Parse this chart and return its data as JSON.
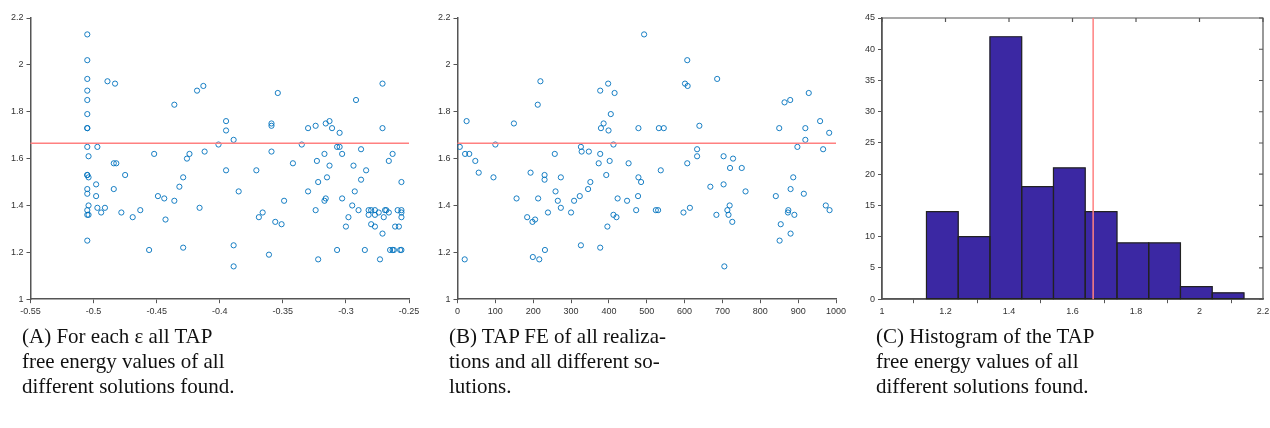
{
  "chart_data": [
    {
      "type": "scatter",
      "marker": "circle",
      "color": "#0072bd",
      "xlim": [
        -0.55,
        -0.25
      ],
      "xticks": [
        -0.55,
        -0.5,
        -0.45,
        -0.4,
        -0.35,
        -0.3,
        -0.25
      ],
      "ylim": [
        1,
        2.2
      ],
      "yticks": [
        1,
        1.2,
        1.4,
        1.6,
        1.8,
        2,
        2.2
      ],
      "x": [
        -0.505,
        -0.505,
        -0.505,
        -0.505,
        -0.505,
        -0.505,
        -0.505,
        -0.505,
        -0.505,
        -0.504,
        -0.505,
        -0.505,
        -0.504,
        -0.505,
        -0.505,
        -0.504,
        -0.505,
        -0.505,
        -0.504,
        -0.505,
        -0.489,
        -0.483,
        -0.497,
        -0.484,
        -0.482,
        -0.475,
        -0.498,
        -0.498,
        -0.484,
        -0.497,
        -0.494,
        -0.491,
        -0.478,
        -0.469,
        -0.463,
        -0.456,
        -0.452,
        -0.449,
        -0.444,
        -0.443,
        -0.436,
        -0.436,
        -0.432,
        -0.429,
        -0.429,
        -0.426,
        -0.424,
        -0.418,
        -0.413,
        -0.412,
        -0.416,
        -0.401,
        -0.395,
        -0.395,
        -0.395,
        -0.389,
        -0.389,
        -0.389,
        -0.385,
        -0.371,
        -0.369,
        -0.366,
        -0.361,
        -0.359,
        -0.359,
        -0.359,
        -0.356,
        -0.354,
        -0.351,
        -0.349,
        -0.342,
        -0.335,
        -0.33,
        -0.33,
        -0.324,
        -0.323,
        -0.324,
        -0.322,
        -0.322,
        -0.317,
        -0.317,
        -0.316,
        -0.316,
        -0.313,
        -0.315,
        -0.313,
        -0.311,
        -0.307,
        -0.307,
        -0.305,
        -0.305,
        -0.303,
        -0.303,
        -0.3,
        -0.298,
        -0.295,
        -0.294,
        -0.293,
        -0.292,
        -0.29,
        -0.288,
        -0.288,
        -0.285,
        -0.284,
        -0.282,
        -0.282,
        -0.28,
        -0.28,
        -0.277,
        -0.277,
        -0.277,
        -0.274,
        -0.273,
        -0.271,
        -0.271,
        -0.271,
        -0.27,
        -0.269,
        -0.268,
        -0.266,
        -0.266,
        -0.265,
        -0.263,
        -0.263,
        -0.262,
        -0.261,
        -0.259,
        -0.258,
        -0.257,
        -0.256,
        -0.256,
        -0.256,
        -0.256,
        -0.256
      ],
      "values": [
        2.13,
        2.02,
        1.94,
        1.89,
        1.85,
        1.79,
        1.73,
        1.73,
        1.65,
        1.61,
        1.53,
        1.53,
        1.52,
        1.47,
        1.45,
        1.4,
        1.38,
        1.36,
        1.36,
        1.25,
        1.93,
        1.92,
        1.65,
        1.58,
        1.58,
        1.53,
        1.49,
        1.44,
        1.47,
        1.39,
        1.37,
        1.39,
        1.37,
        1.35,
        1.38,
        1.21,
        1.62,
        1.44,
        1.43,
        1.34,
        1.42,
        1.83,
        1.48,
        1.52,
        1.22,
        1.6,
        1.62,
        1.89,
        1.91,
        1.63,
        1.39,
        1.66,
        1.76,
        1.72,
        1.55,
        1.68,
        1.23,
        1.14,
        1.46,
        1.55,
        1.35,
        1.37,
        1.19,
        1.75,
        1.74,
        1.63,
        1.33,
        1.88,
        1.32,
        1.42,
        1.58,
        1.66,
        1.46,
        1.73,
        1.74,
        1.59,
        1.38,
        1.5,
        1.17,
        1.42,
        1.62,
        1.43,
        1.75,
        1.76,
        1.52,
        1.57,
        1.73,
        1.65,
        1.21,
        1.71,
        1.65,
        1.62,
        1.43,
        1.31,
        1.35,
        1.4,
        1.57,
        1.46,
        1.85,
        1.38,
        1.64,
        1.51,
        1.21,
        1.55,
        1.38,
        1.36,
        1.38,
        1.32,
        1.36,
        1.38,
        1.31,
        1.37,
        1.17,
        1.92,
        1.28,
        1.73,
        1.35,
        1.38,
        1.38,
        1.37,
        1.59,
        1.21,
        1.62,
        1.21,
        1.21,
        1.31,
        1.38,
        1.31,
        1.21,
        1.21,
        1.5,
        1.38,
        1.35,
        1.37
      ],
      "ref_lines": [
        {
          "axis": "y",
          "value": 1.665,
          "color": "#ff8080"
        }
      ],
      "annotations": [
        "(A) For each ε all TAP\nfree energy values of all\ndifferent solutions found."
      ]
    },
    {
      "type": "scatter",
      "marker": "circle",
      "color": "#0072bd",
      "xlim": [
        0,
        1000
      ],
      "xticks": [
        0,
        100,
        200,
        300,
        400,
        500,
        600,
        700,
        800,
        900,
        1000
      ],
      "ylim": [
        1,
        2.2
      ],
      "yticks": [
        1,
        1.2,
        1.4,
        1.6,
        1.8,
        2,
        2.2
      ],
      "x": [
        6,
        24,
        20,
        31,
        47,
        56,
        19,
        95,
        100,
        149,
        156,
        184,
        193,
        198,
        205,
        199,
        212,
        213,
        216,
        219,
        230,
        230,
        231,
        239,
        257,
        259,
        265,
        273,
        273,
        300,
        308,
        323,
        326,
        328,
        326,
        345,
        347,
        351,
        373,
        377,
        379,
        377,
        377,
        386,
        393,
        396,
        398,
        399,
        402,
        405,
        412,
        412,
        415,
        420,
        423,
        448,
        452,
        472,
        477,
        478,
        478,
        485,
        493,
        524,
        530,
        532,
        537,
        545,
        597,
        601,
        607,
        607,
        608,
        614,
        633,
        633,
        639,
        668,
        684,
        686,
        703,
        703,
        705,
        713,
        716,
        719,
        720,
        726,
        728,
        751,
        761,
        841,
        850,
        851,
        854,
        864,
        873,
        874,
        879,
        880,
        880,
        887,
        890,
        898,
        915,
        919,
        919,
        928,
        958,
        966,
        973,
        982,
        983
      ],
      "values": [
        1.65,
        1.76,
        1.62,
        1.62,
        1.59,
        1.54,
        1.17,
        1.52,
        1.66,
        1.75,
        1.43,
        1.35,
        1.54,
        1.33,
        1.34,
        1.18,
        1.83,
        1.43,
        1.17,
        1.93,
        1.53,
        1.51,
        1.21,
        1.37,
        1.62,
        1.46,
        1.42,
        1.52,
        1.39,
        1.37,
        1.42,
        1.44,
        1.65,
        1.63,
        1.23,
        1.47,
        1.63,
        1.5,
        1.58,
        1.89,
        1.73,
        1.62,
        1.22,
        1.75,
        1.53,
        1.31,
        1.92,
        1.72,
        1.59,
        1.79,
        1.66,
        1.36,
        1.88,
        1.35,
        1.43,
        1.42,
        1.58,
        1.38,
        1.44,
        1.73,
        1.52,
        1.5,
        2.13,
        1.38,
        1.38,
        1.73,
        1.55,
        1.73,
        1.37,
        1.92,
        2.02,
        1.58,
        1.91,
        1.39,
        1.64,
        1.61,
        1.74,
        1.48,
        1.36,
        1.94,
        1.61,
        1.49,
        1.14,
        1.38,
        1.36,
        1.4,
        1.56,
        1.33,
        1.6,
        1.56,
        1.46,
        1.44,
        1.73,
        1.25,
        1.32,
        1.84,
        1.37,
        1.38,
        1.85,
        1.47,
        1.28,
        1.52,
        1.36,
        1.65,
        1.45,
        1.73,
        1.68,
        1.88,
        1.76,
        1.64,
        1.4,
        1.71,
        1.38
      ],
      "ref_lines": [
        {
          "axis": "y",
          "value": 1.665,
          "color": "#ff8080"
        }
      ],
      "annotations": [
        "(B) TAP FE of all realiza-\ntions and all different so-\nlutions."
      ]
    },
    {
      "type": "histogram",
      "color": "#3b28a3",
      "bins": [
        1.14,
        1.24,
        1.34,
        1.44,
        1.54,
        1.64,
        1.74,
        1.84,
        1.94,
        2.04,
        2.14
      ],
      "values": [
        14,
        10,
        42,
        18,
        21,
        14,
        9,
        9,
        2,
        1
      ],
      "xlim": [
        1,
        2.2
      ],
      "xticks": [
        1,
        1.2,
        1.4,
        1.6,
        1.8,
        2,
        2.2
      ],
      "ylim": [
        0,
        45
      ],
      "yticks": [
        0,
        5,
        10,
        15,
        20,
        25,
        30,
        35,
        40,
        45
      ],
      "ref_lines": [
        {
          "axis": "x",
          "value": 1.665,
          "color": "#ff8080"
        }
      ],
      "annotations": [
        "(C) Histogram of the TAP\nfree energy values of all\ndifferent solutions found."
      ]
    }
  ]
}
